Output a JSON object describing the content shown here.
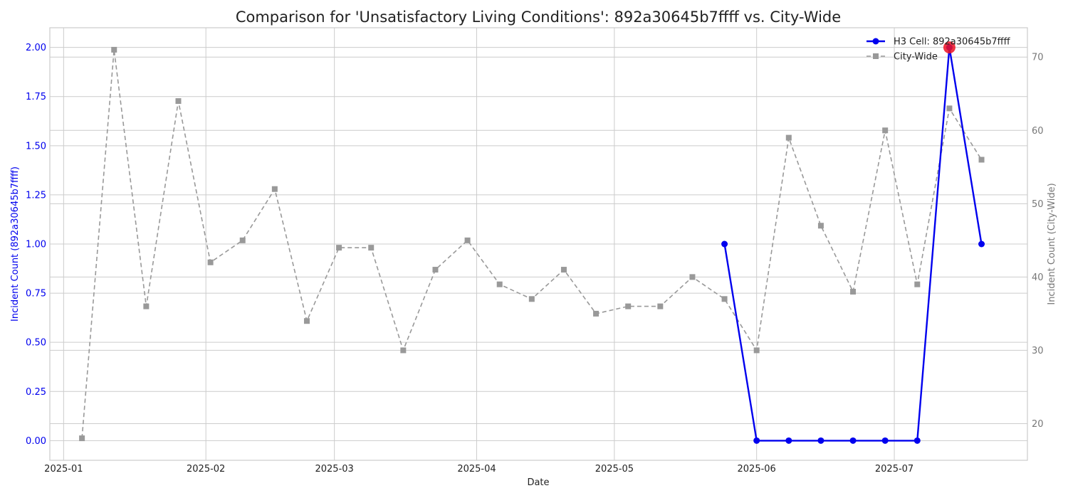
{
  "chart_data": {
    "type": "line",
    "title": "Comparison for 'Unsatisfactory Living Conditions': 892a30645b7ffff vs. City-Wide",
    "xlabel": "Date",
    "ylabel_left": "Incident Count (892a30645b7ffff)",
    "ylabel_right": "Incident Count (City-Wide)",
    "x_ticks": [
      "2025-01",
      "2025-02",
      "2025-03",
      "2025-04",
      "2025-05",
      "2025-06",
      "2025-07"
    ],
    "y_left_ticks": [
      "0.00",
      "0.25",
      "0.50",
      "0.75",
      "1.00",
      "1.25",
      "1.50",
      "1.75",
      "2.00"
    ],
    "y_right_ticks": [
      "20",
      "30",
      "40",
      "50",
      "60",
      "70"
    ],
    "ylim_left": [
      -0.1,
      2.1
    ],
    "ylim_right": [
      15,
      74
    ],
    "xlim": [
      "2024-12-29",
      "2025-07-30"
    ],
    "grid": true,
    "legend_position": "top-right",
    "series": [
      {
        "name": "H3 Cell: 892a30645b7ffff",
        "axis": "left",
        "color": "#0000ee",
        "style": "solid",
        "marker": "circle",
        "points": [
          {
            "x": "2025-05-25",
            "y": 1
          },
          {
            "x": "2025-06-01",
            "y": 0
          },
          {
            "x": "2025-06-08",
            "y": 0
          },
          {
            "x": "2025-06-15",
            "y": 0
          },
          {
            "x": "2025-06-22",
            "y": 0
          },
          {
            "x": "2025-06-29",
            "y": 0
          },
          {
            "x": "2025-07-06",
            "y": 0
          },
          {
            "x": "2025-07-13",
            "y": 2
          },
          {
            "x": "2025-07-20",
            "y": 1
          }
        ]
      },
      {
        "name": "City-Wide",
        "axis": "right",
        "color": "#999999",
        "style": "dashed",
        "marker": "square",
        "points": [
          {
            "x": "2025-01-05",
            "y": 18
          },
          {
            "x": "2025-01-12",
            "y": 71
          },
          {
            "x": "2025-01-19",
            "y": 36
          },
          {
            "x": "2025-01-26",
            "y": 64
          },
          {
            "x": "2025-02-02",
            "y": 42
          },
          {
            "x": "2025-02-09",
            "y": 45
          },
          {
            "x": "2025-02-16",
            "y": 52
          },
          {
            "x": "2025-02-23",
            "y": 34
          },
          {
            "x": "2025-03-02",
            "y": 44
          },
          {
            "x": "2025-03-09",
            "y": 44
          },
          {
            "x": "2025-03-16",
            "y": 30
          },
          {
            "x": "2025-03-23",
            "y": 41
          },
          {
            "x": "2025-03-30",
            "y": 45
          },
          {
            "x": "2025-04-06",
            "y": 39
          },
          {
            "x": "2025-04-13",
            "y": 37
          },
          {
            "x": "2025-04-20",
            "y": 41
          },
          {
            "x": "2025-04-27",
            "y": 35
          },
          {
            "x": "2025-05-04",
            "y": 36
          },
          {
            "x": "2025-05-11",
            "y": 36
          },
          {
            "x": "2025-05-18",
            "y": 40
          },
          {
            "x": "2025-05-25",
            "y": 37
          },
          {
            "x": "2025-06-01",
            "y": 30
          },
          {
            "x": "2025-06-08",
            "y": 59
          },
          {
            "x": "2025-06-15",
            "y": 47
          },
          {
            "x": "2025-06-22",
            "y": 38
          },
          {
            "x": "2025-06-29",
            "y": 60
          },
          {
            "x": "2025-07-06",
            "y": 39
          },
          {
            "x": "2025-07-13",
            "y": 63
          },
          {
            "x": "2025-07-20",
            "y": 56
          }
        ]
      }
    ],
    "highlight_points": [
      {
        "series": "H3 Cell: 892a30645b7ffff",
        "x": "2025-07-13",
        "y": 2,
        "color": "#ee1122"
      }
    ],
    "colors": {
      "left_axis_text": "#0000ee",
      "right_axis_text": "#777777",
      "grid": "#cccccc",
      "frame": "#cccccc"
    }
  }
}
